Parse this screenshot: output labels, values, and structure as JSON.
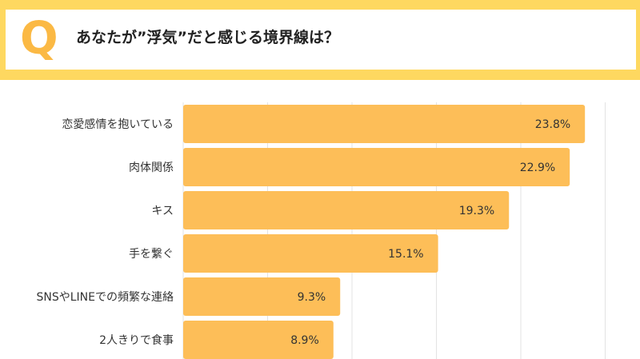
{
  "header": {
    "q_mark": "Q",
    "question": "あなたが”浮気”だと感じる境界線は？"
  },
  "colors": {
    "header_band": "#fed860",
    "bar": "#fdbe58",
    "q_mark": "#fbb944",
    "grid": "#e3e3e3"
  },
  "chart_data": {
    "type": "bar",
    "orientation": "horizontal",
    "title": "あなたが”浮気”だと感じる境界線は？",
    "categories": [
      "恋愛感情を抱いている",
      "肉体関係",
      "キス",
      "手を繋ぐ",
      "SNSやLINEでの頻繁な連絡",
      "2人きりで食事"
    ],
    "values": [
      23.8,
      22.9,
      19.3,
      15.1,
      9.3,
      8.9
    ],
    "value_labels": [
      "23.8%",
      "22.9%",
      "19.3%",
      "15.1%",
      "9.3%",
      "8.9%"
    ],
    "unit": "%",
    "xlim": [
      0,
      25
    ],
    "grid": true,
    "xlabel": "",
    "ylabel": ""
  }
}
